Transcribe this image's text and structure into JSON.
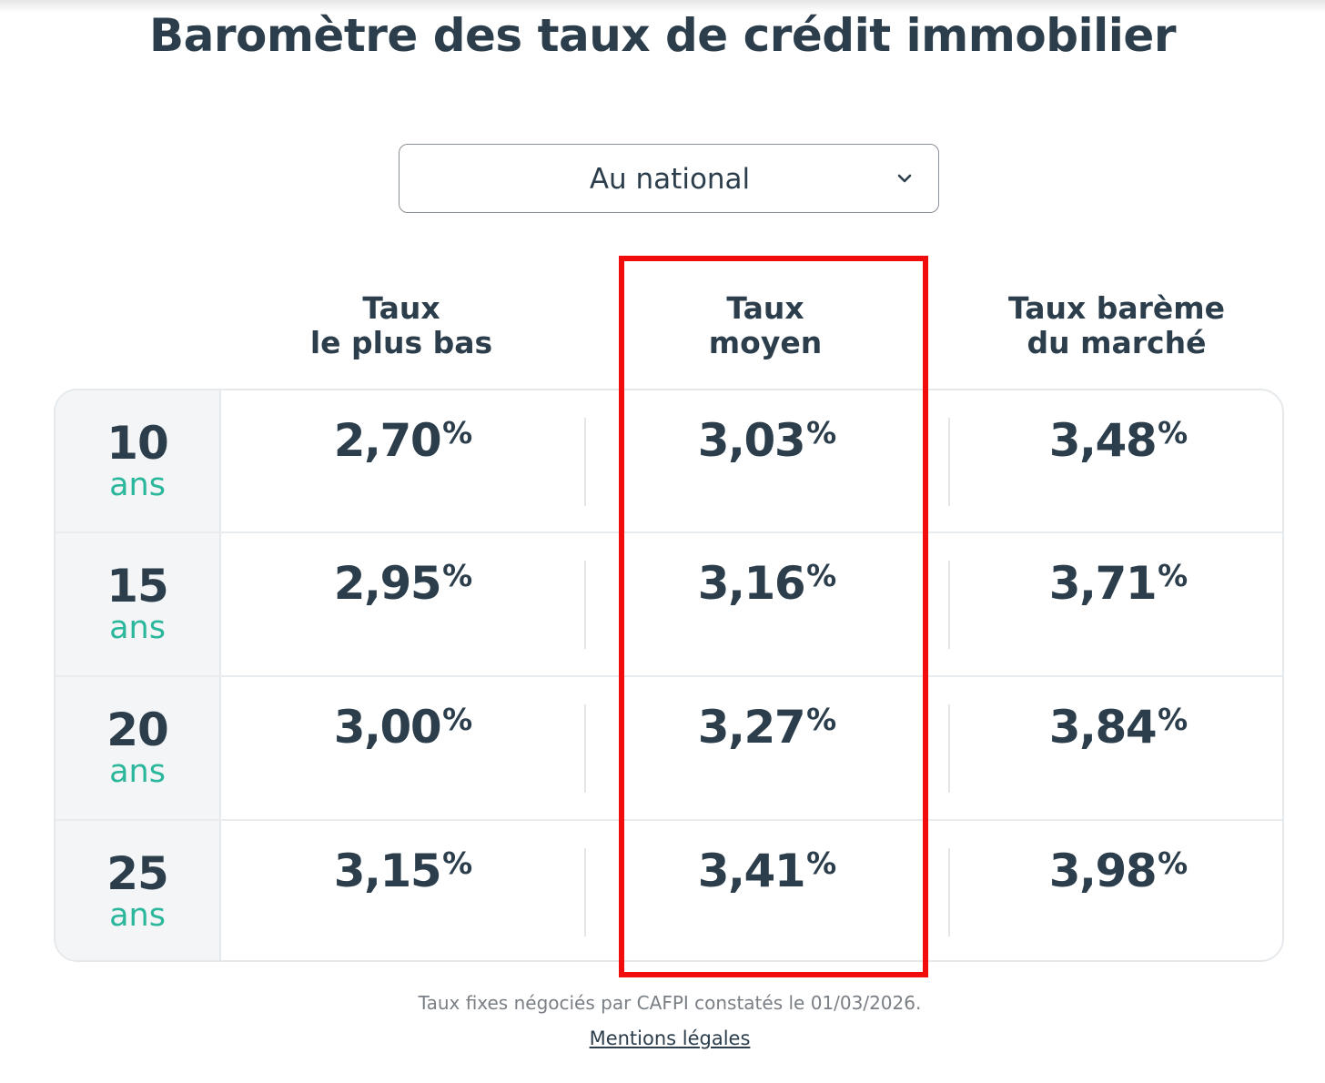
{
  "page": {
    "title": "Baromètre des taux de crédit immobilier"
  },
  "region_select": {
    "selected": "Au national",
    "icon": "chevron-down-icon"
  },
  "table": {
    "columns": [
      {
        "line1": "Taux",
        "line2": "le plus bas"
      },
      {
        "line1": "Taux",
        "line2": "moyen"
      },
      {
        "line1": "Taux barème",
        "line2": "du marché"
      }
    ],
    "rows": [
      {
        "years": "10",
        "unit": "ans",
        "rates": [
          "2,70",
          "3,03",
          "3,48"
        ]
      },
      {
        "years": "15",
        "unit": "ans",
        "rates": [
          "2,95",
          "3,16",
          "3,71"
        ]
      },
      {
        "years": "20",
        "unit": "ans",
        "rates": [
          "3,00",
          "3,27",
          "3,84"
        ]
      },
      {
        "years": "25",
        "unit": "ans",
        "rates": [
          "3,15",
          "3,41",
          "3,98"
        ]
      }
    ],
    "percent_sign": "%"
  },
  "highlight": {
    "color": "#f20d0d",
    "column": "Taux moyen"
  },
  "colors": {
    "text": "#2c3e4c",
    "accent": "#2bb79c"
  },
  "footer": {
    "note": "Taux fixes négociés par CAFPI constatés le 01/03/2026.",
    "link": "Mentions légales"
  }
}
